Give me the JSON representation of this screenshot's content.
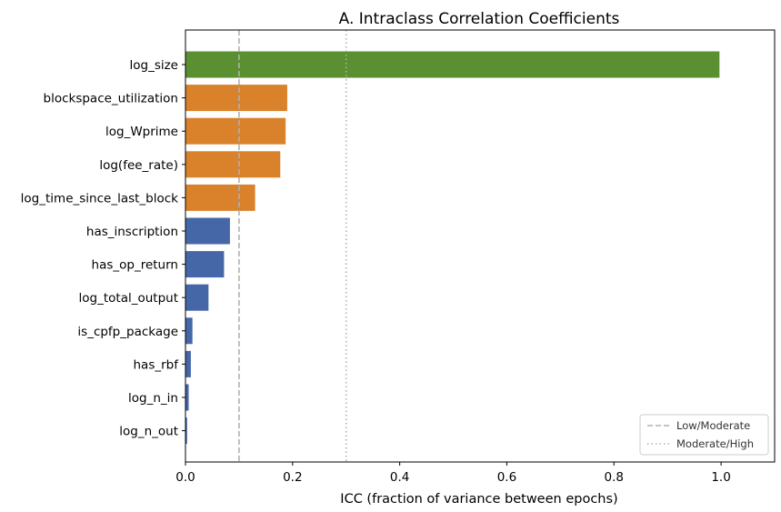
{
  "chart_data": {
    "type": "bar",
    "orientation": "horizontal",
    "title": "A. Intraclass Correlation Coefficients",
    "xlabel": "ICC (fraction of variance between epochs)",
    "ylabel": "",
    "xlim": [
      0,
      1.1
    ],
    "xticks": [
      "0.0",
      "0.2",
      "0.4",
      "0.6",
      "0.8",
      "1.0"
    ],
    "xtick_values": [
      0.0,
      0.2,
      0.4,
      0.6,
      0.8,
      1.0
    ],
    "grid": false,
    "legend_position": "lower-right",
    "categories": [
      "log_size",
      "blockspace_utilization",
      "log_Wprime",
      "log(fee_rate)",
      "log_time_since_last_block",
      "has_inscription",
      "has_op_return",
      "log_total_output",
      "is_cpfp_package",
      "has_rbf",
      "log_n_in",
      "log_n_out"
    ],
    "values": [
      0.997,
      0.19,
      0.187,
      0.177,
      0.13,
      0.083,
      0.072,
      0.043,
      0.013,
      0.01,
      0.006,
      0.003
    ],
    "bar_colors": [
      "#5a8f32",
      "#d9822b",
      "#d9822b",
      "#d9822b",
      "#d9822b",
      "#4567a8",
      "#4567a8",
      "#4567a8",
      "#4567a8",
      "#4567a8",
      "#4567a8",
      "#4567a8"
    ],
    "reference_lines": [
      {
        "label": "Low/Moderate",
        "value": 0.1,
        "style": "dashed",
        "color": "#b0b0b0"
      },
      {
        "label": "Moderate/High",
        "value": 0.3,
        "style": "dotted",
        "color": "#b0b0b0"
      }
    ]
  }
}
